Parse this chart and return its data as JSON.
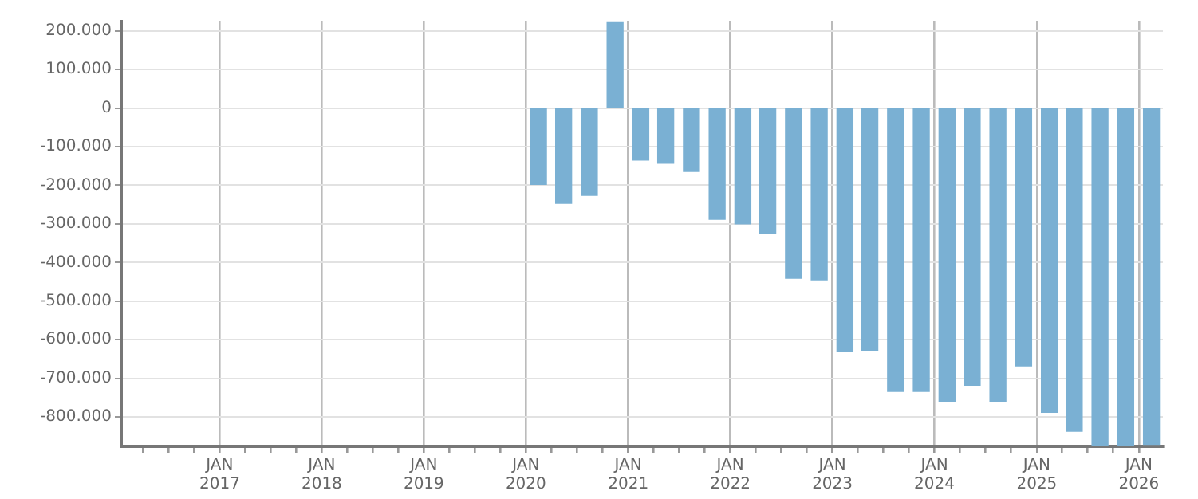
{
  "chart_data": {
    "type": "bar",
    "color": "#7ab0d3",
    "x": [
      "2020-02-15",
      "2020-05-15",
      "2020-08-15",
      "2020-11-15",
      "2021-02-15",
      "2021-05-15",
      "2021-08-15",
      "2021-11-15",
      "2022-02-15",
      "2022-05-15",
      "2022-08-15",
      "2022-11-15",
      "2023-02-15",
      "2023-05-15",
      "2023-08-15",
      "2023-11-15",
      "2024-02-15",
      "2024-05-15",
      "2024-08-15",
      "2024-11-15",
      "2025-02-15",
      "2025-05-15",
      "2025-08-15",
      "2025-11-15",
      "2026-02-15"
    ],
    "values": [
      -198000,
      -247000,
      -226000,
      223000,
      -135000,
      -143000,
      -164000,
      -288000,
      -300000,
      -325000,
      -441000,
      -445000,
      -631000,
      -627000,
      -734000,
      -734000,
      -759000,
      -718000,
      -759000,
      -668000,
      -788000,
      -837000,
      -875000,
      -875000,
      -871000
    ],
    "xlim": [
      "2016-01-15",
      "2026-03-28"
    ],
    "xticks": [
      {
        "value": "2016-04",
        "label": null
      },
      {
        "value": "2016-07",
        "label": null
      },
      {
        "value": "2016-10",
        "label": null
      },
      {
        "value": "2017-01",
        "label": "JAN\n2017"
      },
      {
        "value": "2017-04",
        "label": null
      },
      {
        "value": "2017-07",
        "label": null
      },
      {
        "value": "2017-10",
        "label": null
      },
      {
        "value": "2018-01",
        "label": "JAN\n2018"
      },
      {
        "value": "2018-04",
        "label": null
      },
      {
        "value": "2018-07",
        "label": null
      },
      {
        "value": "2018-10",
        "label": null
      },
      {
        "value": "2019-01",
        "label": "JAN\n2019"
      },
      {
        "value": "2019-04",
        "label": null
      },
      {
        "value": "2019-07",
        "label": null
      },
      {
        "value": "2019-10",
        "label": null
      },
      {
        "value": "2020-01",
        "label": "JAN\n2020"
      },
      {
        "value": "2020-04",
        "label": null
      },
      {
        "value": "2020-07",
        "label": null
      },
      {
        "value": "2020-10",
        "label": null
      },
      {
        "value": "2021-01",
        "label": "JAN\n2021"
      },
      {
        "value": "2021-04",
        "label": null
      },
      {
        "value": "2021-07",
        "label": null
      },
      {
        "value": "2021-10",
        "label": null
      },
      {
        "value": "2022-01",
        "label": "JAN\n2022"
      },
      {
        "value": "2022-04",
        "label": null
      },
      {
        "value": "2022-07",
        "label": null
      },
      {
        "value": "2022-10",
        "label": null
      },
      {
        "value": "2023-01",
        "label": "JAN\n2023"
      },
      {
        "value": "2023-04",
        "label": null
      },
      {
        "value": "2023-07",
        "label": null
      },
      {
        "value": "2023-10",
        "label": null
      },
      {
        "value": "2024-01",
        "label": "JAN\n2024"
      },
      {
        "value": "2024-04",
        "label": null
      },
      {
        "value": "2024-07",
        "label": null
      },
      {
        "value": "2024-10",
        "label": null
      },
      {
        "value": "2025-01",
        "label": "JAN\n2025"
      },
      {
        "value": "2025-04",
        "label": null
      },
      {
        "value": "2025-07",
        "label": null
      },
      {
        "value": "2025-10",
        "label": null
      },
      {
        "value": "2026-01",
        "label": "JAN\n2026"
      }
    ],
    "ylim": [
      -876000,
      226000
    ],
    "yticks": [
      {
        "value": 200000,
        "label": "200.000"
      },
      {
        "value": 100000,
        "label": "100.000"
      },
      {
        "value": 0,
        "label": "0"
      },
      {
        "value": -100000,
        "label": "-100.000"
      },
      {
        "value": -200000,
        "label": "-200.000"
      },
      {
        "value": -300000,
        "label": "-300.000"
      },
      {
        "value": -400000,
        "label": "-400.000"
      },
      {
        "value": -500000,
        "label": "-500.000"
      },
      {
        "value": -600000,
        "label": "-600.000"
      },
      {
        "value": -700000,
        "label": "-700.000"
      },
      {
        "value": -800000,
        "label": "-800.000"
      }
    ],
    "grid": true,
    "legend": false
  }
}
